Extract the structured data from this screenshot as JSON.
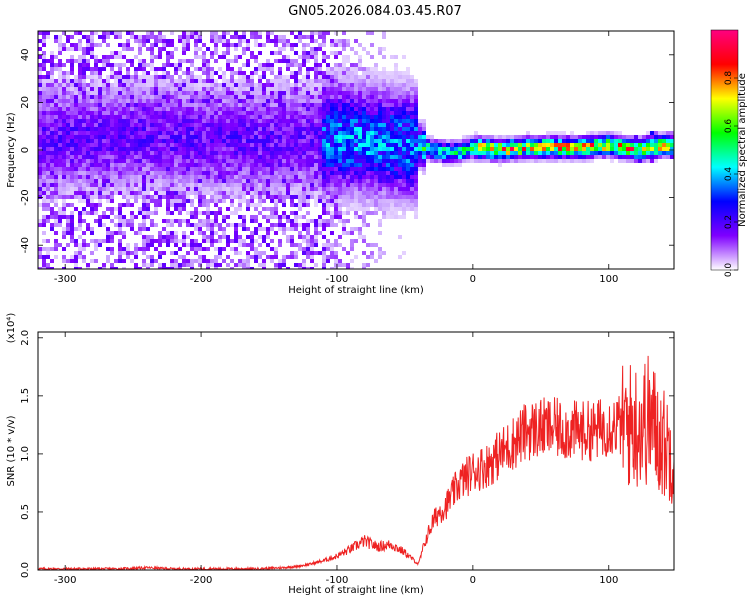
{
  "title": "GN05.2026.084.03.45.R07",
  "chart_data": [
    {
      "type": "heatmap",
      "xlabel": "Height of straight line (km)",
      "ylabel": "Frequency (Hz)",
      "xlim": [
        -320,
        148
      ],
      "ylim": [
        -50,
        50
      ],
      "xticks": [
        -300,
        -200,
        -100,
        0,
        100
      ],
      "yticks": [
        -40,
        -20,
        0,
        20,
        40
      ],
      "colorbar": {
        "label": "Normalized spectral amplitude",
        "range": [
          0,
          1
        ],
        "ticks": [
          "0.0",
          "0.2",
          "0.4",
          "0.6",
          "0.8"
        ],
        "colors": [
          "#ffffff",
          "#7f00ff",
          "#0000ff",
          "#00ffff",
          "#00ff00",
          "#ffff00",
          "#ff0000",
          "#ff0080"
        ]
      },
      "center_freq": [
        [
          -320,
          5
        ],
        [
          -280,
          5
        ],
        [
          -240,
          6
        ],
        [
          -200,
          5
        ],
        [
          -160,
          4
        ],
        [
          -120,
          4
        ],
        [
          -100,
          5
        ],
        [
          -80,
          4
        ],
        [
          -60,
          3
        ],
        [
          -40,
          2
        ],
        [
          -30,
          0
        ],
        [
          -20,
          -1
        ],
        [
          -10,
          -1
        ],
        [
          0,
          1
        ],
        [
          20,
          0
        ],
        [
          40,
          1
        ],
        [
          60,
          1
        ],
        [
          80,
          1
        ],
        [
          100,
          2
        ],
        [
          110,
          1
        ],
        [
          120,
          0
        ],
        [
          130,
          1
        ],
        [
          140,
          2
        ],
        [
          148,
          2
        ]
      ]
    },
    {
      "type": "line",
      "xlabel": "Height of straight line (km)",
      "ylabel": "SNR (10 * v/v)",
      "scale_label": "(x10⁴)",
      "xlim": [
        -320,
        148
      ],
      "ylim": [
        0,
        2.05
      ],
      "xticks": [
        -300,
        -200,
        -100,
        0,
        100
      ],
      "yticks": [
        "0.0",
        "0.5",
        "1.0",
        "1.5",
        "2.0"
      ],
      "color": "#ee2222",
      "series": [
        {
          "x": [
            -320,
            -300,
            -280,
            -260,
            -240,
            -220,
            -200,
            -180,
            -160,
            -140,
            -130,
            -120,
            -110,
            -100,
            -90,
            -80,
            -70,
            -60,
            -50,
            -45,
            -40,
            -35,
            -30,
            -25,
            -20,
            -15,
            -10,
            -5,
            0,
            10,
            20,
            30,
            40,
            50,
            60,
            70,
            80,
            90,
            100,
            110,
            120,
            130,
            140,
            148
          ],
          "values": [
            0.01,
            0.01,
            0.01,
            0.01,
            0.02,
            0.01,
            0.01,
            0.01,
            0.01,
            0.02,
            0.03,
            0.05,
            0.08,
            0.12,
            0.18,
            0.25,
            0.2,
            0.22,
            0.15,
            0.1,
            0.05,
            0.25,
            0.4,
            0.5,
            0.55,
            0.65,
            0.75,
            0.8,
            0.85,
            0.9,
            1.0,
            1.1,
            1.2,
            1.22,
            1.22,
            1.2,
            1.2,
            1.2,
            1.25,
            1.25,
            1.25,
            1.3,
            1.1,
            1.0
          ]
        }
      ]
    }
  ]
}
